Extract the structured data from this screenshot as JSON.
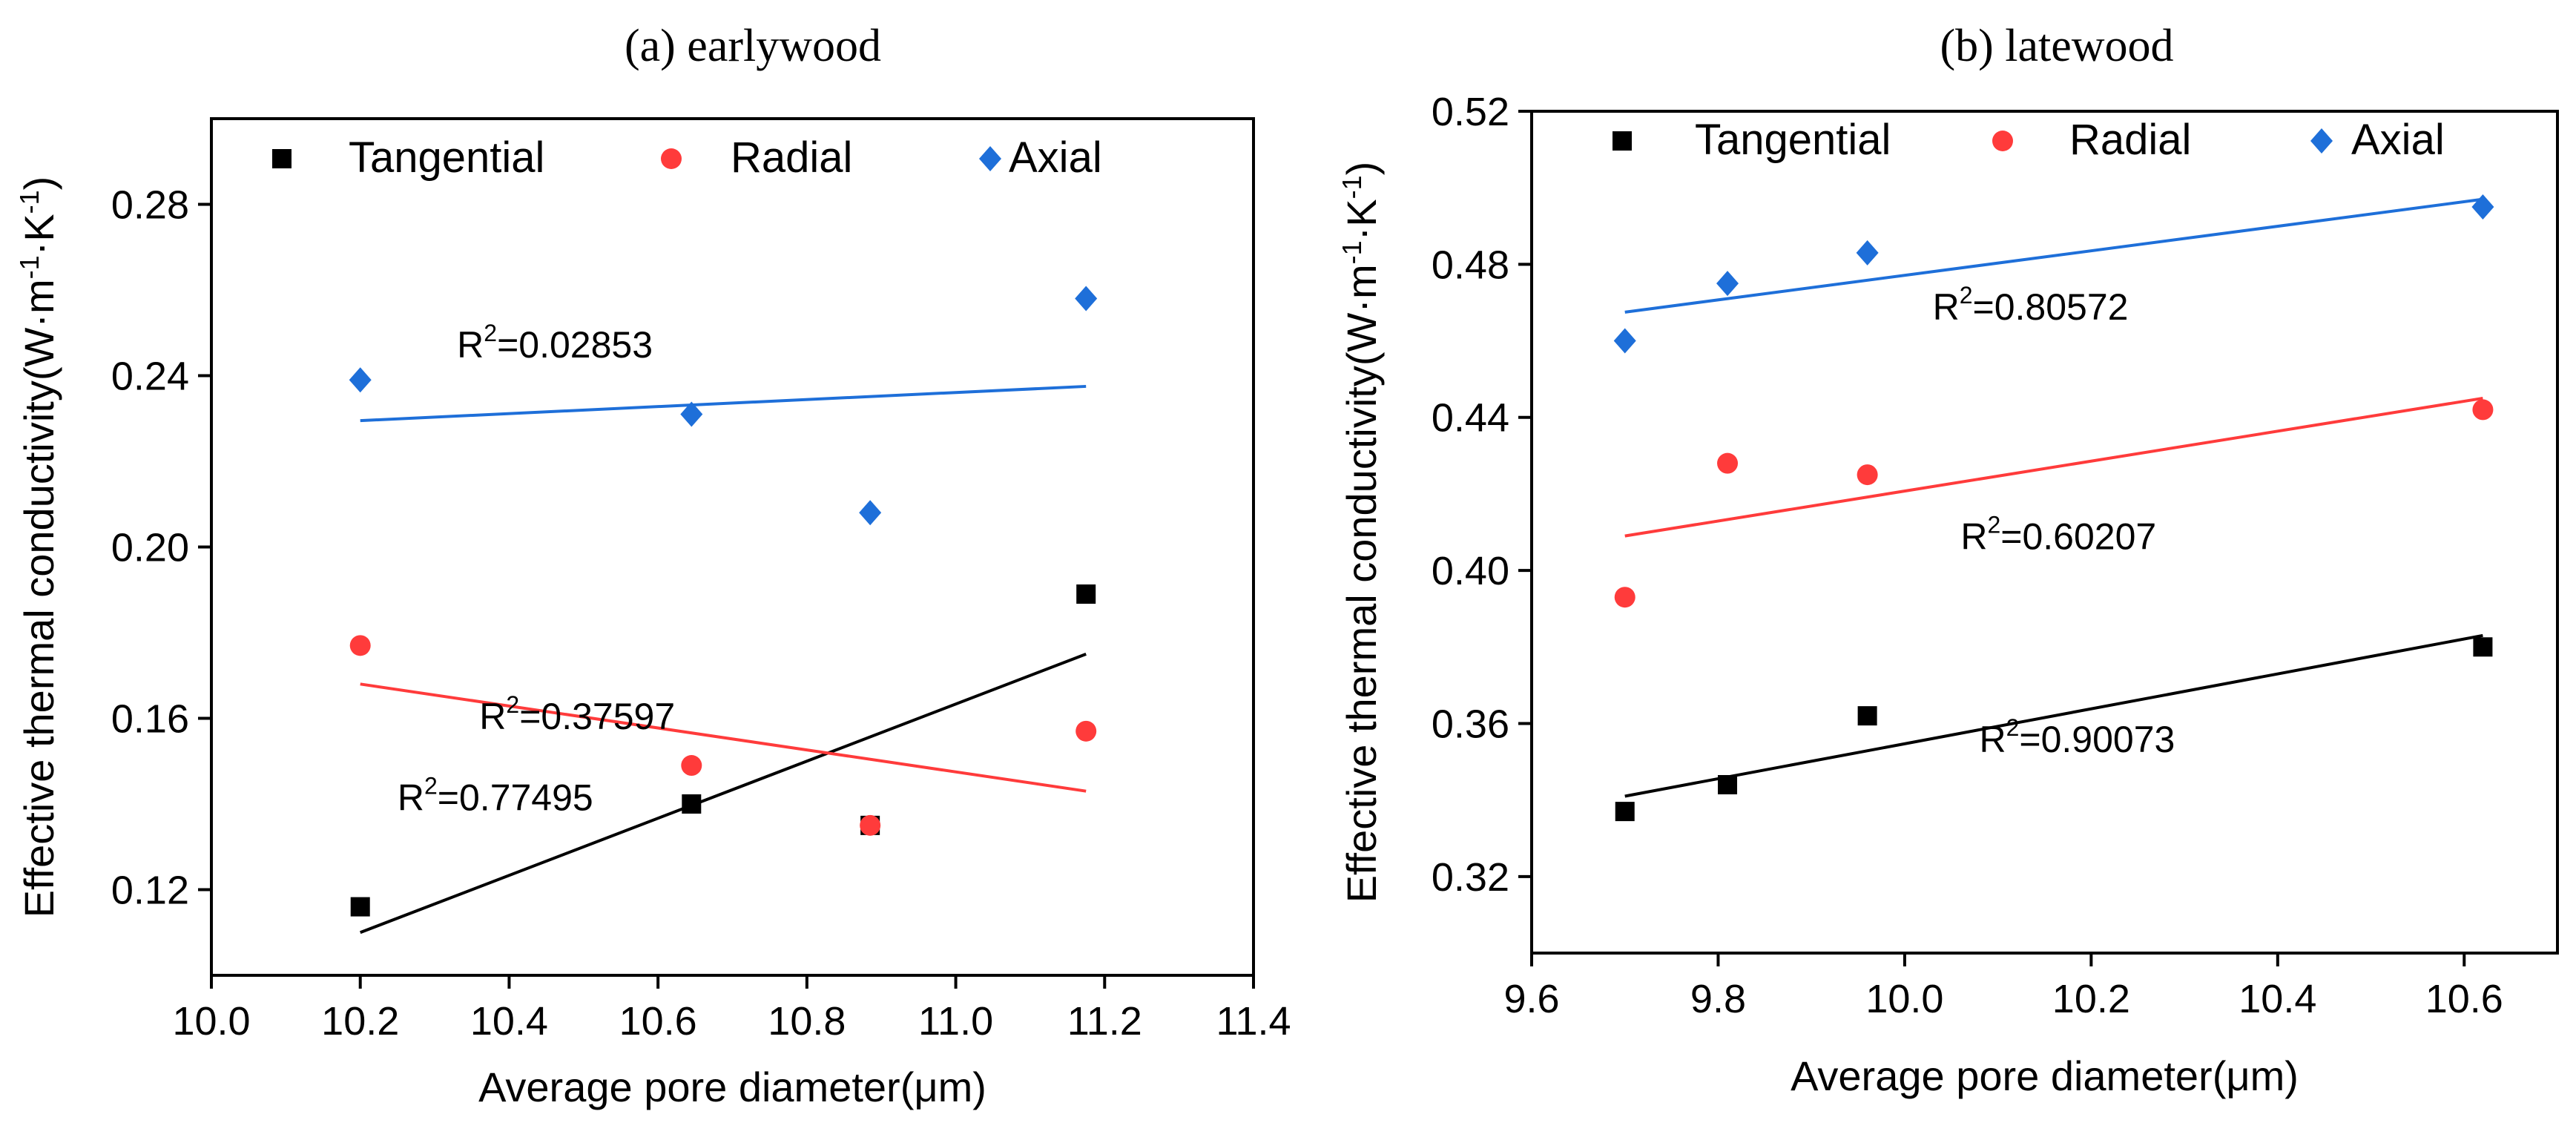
{
  "chart_data": [
    {
      "type": "scatter",
      "title": "(a)   earlywood",
      "xlabel": "Average pore diameter(μm)",
      "ylabel": "Effective thermal conductivity(W·m-1·K-1)",
      "ylabel_parts": {
        "main": "Effective thermal conductivity(W·m",
        "exp1": "-1",
        "mid": "·K",
        "exp2": "-1",
        "end": ")"
      },
      "xlim": [
        10.0,
        11.4
      ],
      "ylim": [
        0.1,
        0.3
      ],
      "xticks": [
        "10.0",
        "10.2",
        "10.4",
        "10.6",
        "10.8",
        "11.0",
        "11.2",
        "11.4"
      ],
      "yticks": [
        "0.12",
        "0.16",
        "0.20",
        "0.24",
        "0.28"
      ],
      "legend": {
        "position": "top",
        "entries": [
          "Tangential",
          "Radial",
          "Axial"
        ]
      },
      "series": [
        {
          "name": "Tangential",
          "color": "#000000",
          "marker": "square",
          "x": [
            10.2,
            10.645,
            10.885,
            11.175
          ],
          "y": [
            0.116,
            0.14,
            0.135,
            0.189
          ],
          "fit": {
            "x": [
              10.2,
              11.175
            ],
            "y": [
              0.11,
              0.175
            ]
          },
          "r2_label": "0.77495",
          "r2_anchor": [
            10.25,
            0.1385
          ]
        },
        {
          "name": "Radial",
          "color": "#ff3b3b",
          "marker": "circle",
          "x": [
            10.2,
            10.645,
            10.885,
            11.175
          ],
          "y": [
            0.177,
            0.149,
            0.135,
            0.157
          ],
          "fit": {
            "x": [
              10.2,
              11.175
            ],
            "y": [
              0.168,
              0.143
            ]
          },
          "r2_label": "0.37597",
          "r2_anchor": [
            10.36,
            0.1575
          ]
        },
        {
          "name": "Axial",
          "color": "#1e6fd9",
          "marker": "diamond",
          "x": [
            10.2,
            10.645,
            10.885,
            11.175
          ],
          "y": [
            0.239,
            0.231,
            0.208,
            0.258
          ],
          "fit": {
            "x": [
              10.2,
              11.175
            ],
            "y": [
              0.2295,
              0.2375
            ]
          },
          "r2_label": "0.02853",
          "r2_anchor": [
            10.33,
            0.2442
          ]
        }
      ]
    },
    {
      "type": "scatter",
      "title": "(b) latewood",
      "xlabel": "Average pore diameter(μm)",
      "ylabel": "Effective thermal conductivity(W·m-1·K-1)",
      "ylabel_parts": {
        "main": "Effective thermal conductivity(W·m",
        "exp1": "-1",
        "mid": "·K",
        "exp2": "-1",
        "end": ")"
      },
      "xlim": [
        9.6,
        10.7
      ],
      "ylim": [
        0.3,
        0.52
      ],
      "xticks": [
        "9.6",
        "9.8",
        "10.0",
        "10.2",
        "10.4",
        "10.6"
      ],
      "yticks": [
        "0.32",
        "0.36",
        "0.40",
        "0.44",
        "0.48",
        "0.52"
      ],
      "legend": {
        "position": "top",
        "entries": [
          "Tangential",
          "Radial",
          "Axial"
        ]
      },
      "series": [
        {
          "name": "Tangential",
          "color": "#000000",
          "marker": "square",
          "x": [
            9.7,
            9.81,
            9.96,
            10.62
          ],
          "y": [
            0.337,
            0.344,
            0.362,
            0.38
          ],
          "fit": {
            "x": [
              9.7,
              10.62
            ],
            "y": [
              0.341,
              0.383
            ]
          },
          "r2_label": "0.90073",
          "r2_anchor": [
            10.08,
            0.3525
          ]
        },
        {
          "name": "Radial",
          "color": "#ff3b3b",
          "marker": "circle",
          "x": [
            9.7,
            9.81,
            9.96,
            10.62
          ],
          "y": [
            0.393,
            0.428,
            0.425,
            0.442
          ],
          "fit": {
            "x": [
              9.7,
              10.62
            ],
            "y": [
              0.409,
              0.445
            ]
          },
          "r2_label": "0.60207",
          "r2_anchor": [
            10.06,
            0.4055
          ]
        },
        {
          "name": "Axial",
          "color": "#1e6fd9",
          "marker": "diamond",
          "x": [
            9.7,
            9.81,
            9.96,
            10.62
          ],
          "y": [
            0.46,
            0.475,
            0.483,
            0.495
          ],
          "fit": {
            "x": [
              9.7,
              10.62
            ],
            "y": [
              0.4675,
              0.497
            ]
          },
          "r2_label": "0.80572",
          "r2_anchor": [
            10.03,
            0.4655
          ]
        }
      ]
    }
  ]
}
